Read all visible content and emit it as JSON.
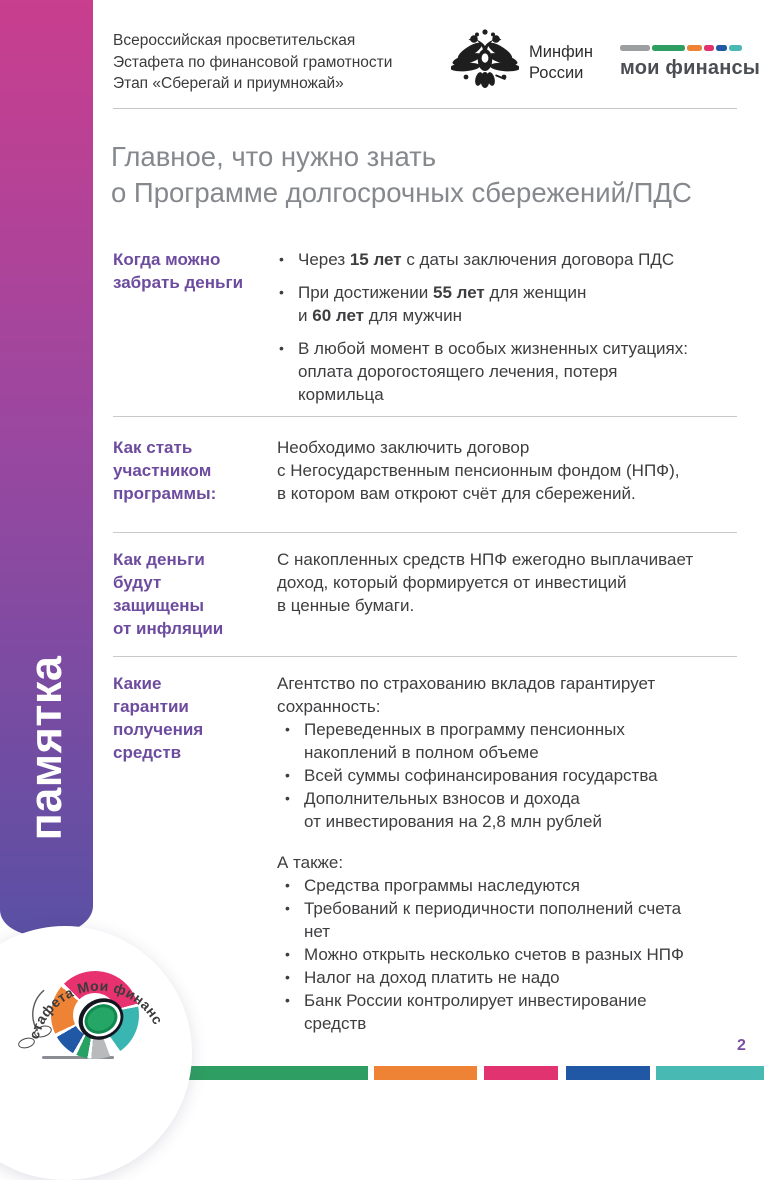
{
  "bullet_glyph": "•",
  "sidebar": {
    "label": "памятка"
  },
  "header": {
    "program_lines": [
      "Всероссийская просветительская",
      "Эстафета по финансовой грамотности",
      "Этап «Сберегай и приумножай»"
    ],
    "minfin_line1": "Минфин",
    "minfin_line2": "России",
    "myfinances_label": "мои финансы",
    "myfinances_bar_colors": [
      "#9c9fa0",
      "#2f9e62",
      "#ee8336",
      "#e1336f",
      "#2158a6",
      "#49b9b4"
    ]
  },
  "title": {
    "line1": "Главное, что нужно знать",
    "line2": "о Программе долгосрочных сбережений/ПДС"
  },
  "sections": [
    {
      "heading": "Когда можно\nзабрать деньги",
      "bullets": [
        "Через **15 лет** с даты заключения договора ПДС",
        "При достижении **55 лет** для женщин\nи **60 лет** для мужчин",
        "В любой момент в особых жизненных ситуациях:\nоплата дорогостоящего лечения, потеря\nкормильца"
      ]
    },
    {
      "heading": "Как стать\nучастником\nпрограммы:",
      "text": "Необходимо заключить договор\nс Негосударственным пенсионным фондом (НПФ),\nв котором вам откроют счёт для сбережений."
    },
    {
      "heading": "Как деньги\nбудут\nзащищены\nот инфляции",
      "text": "С накопленных средств НПФ ежегодно выплачивает\nдоход, который формируется от инвестиций\nв ценные бумаги."
    },
    {
      "heading": "Какие\nгарантии\nполучения\nсредств",
      "intro": "Агентство по страхованию вкладов гарантирует\nсохранность:",
      "bullets": [
        "Переведенных в программу пенсионных\nнакоплений в полном объеме",
        "Всей суммы софинансирования государства",
        "Дополнительных взносов и дохода\nот инвестирования на 2,8 млн рублей"
      ],
      "also_label": "А также:",
      "also_bullets": [
        "Средства программы наследуются",
        "Требований к периодичности пополнений счета\nнет",
        "Можно открыть несколько счетов в разных НПФ",
        "Налог на доход платить не надо",
        "Банк России контролирует инвестирование\nсредств"
      ]
    }
  ],
  "footer": {
    "page_number": "2",
    "bar_colors": [
      "#2f9e62",
      "#ee8336",
      "#e1336f",
      "#2158a6",
      "#49b9b4"
    ],
    "logo_arc_text": "Эстафета Мои финансы"
  },
  "colors": {
    "accent_purple": "#6d4b9f",
    "sidebar_gradient_top": "#c93e8e",
    "sidebar_gradient_bottom": "#5a50a4"
  }
}
